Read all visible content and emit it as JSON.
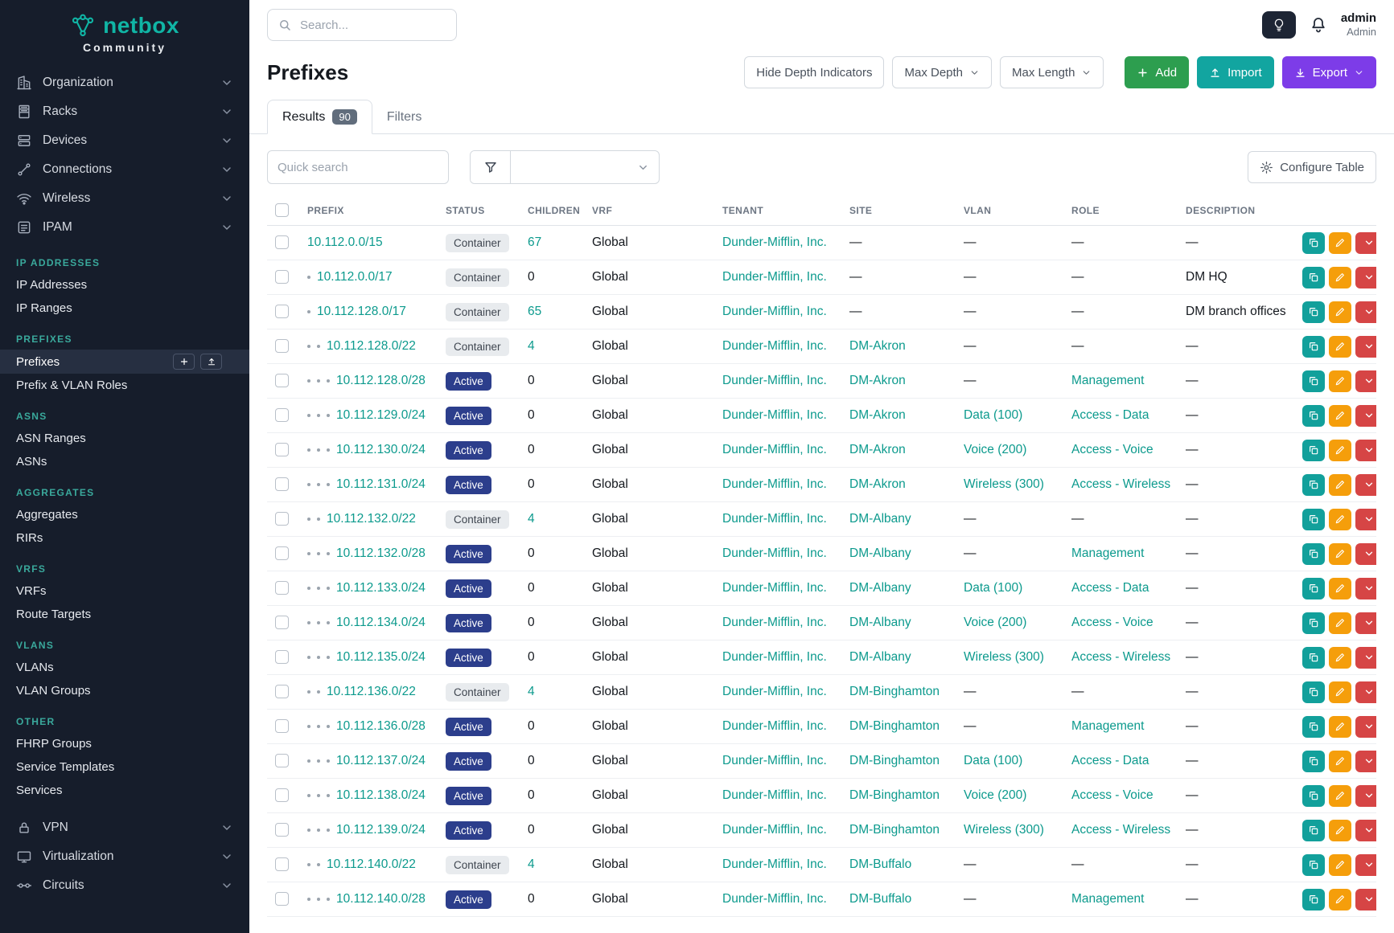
{
  "colors": {
    "accent_teal": "#10b5a5",
    "link_teal": "#0c9a8d",
    "sidebar_bg": "#161d2b",
    "status_active": "#2c3e8c",
    "status_container": "#e8ebee",
    "add_green": "#2d9e4f",
    "import_teal": "#12a5a0",
    "export_purple": "#7d3ce8",
    "edit_orange": "#f59e0b",
    "danger_red": "#d64545"
  },
  "sidebar": {
    "brand": "netbox",
    "brand_subtitle": "Community",
    "nav_top": [
      {
        "label": "Organization",
        "icon": "organization-icon"
      },
      {
        "label": "Racks",
        "icon": "racks-icon"
      },
      {
        "label": "Devices",
        "icon": "devices-icon"
      },
      {
        "label": "Connections",
        "icon": "connections-icon"
      },
      {
        "label": "Wireless",
        "icon": "wireless-icon"
      },
      {
        "label": "IPAM",
        "icon": "ipam-icon"
      }
    ],
    "sections": [
      {
        "title": "IP Addresses",
        "items": [
          {
            "label": "IP Addresses"
          },
          {
            "label": "IP Ranges"
          }
        ]
      },
      {
        "title": "Prefixes",
        "items": [
          {
            "label": "Prefixes",
            "active": true
          },
          {
            "label": "Prefix & VLAN Roles"
          }
        ]
      },
      {
        "title": "ASNs",
        "items": [
          {
            "label": "ASN Ranges"
          },
          {
            "label": "ASNs"
          }
        ]
      },
      {
        "title": "Aggregates",
        "items": [
          {
            "label": "Aggregates"
          },
          {
            "label": "RIRs"
          }
        ]
      },
      {
        "title": "VRFs",
        "items": [
          {
            "label": "VRFs"
          },
          {
            "label": "Route Targets"
          }
        ]
      },
      {
        "title": "VLANs",
        "items": [
          {
            "label": "VLANs"
          },
          {
            "label": "VLAN Groups"
          }
        ]
      },
      {
        "title": "Other",
        "items": [
          {
            "label": "FHRP Groups"
          },
          {
            "label": "Service Templates"
          },
          {
            "label": "Services"
          }
        ]
      }
    ],
    "nav_bottom": [
      {
        "label": "VPN",
        "icon": "vpn-icon"
      },
      {
        "label": "Virtualization",
        "icon": "virtualization-icon"
      },
      {
        "label": "Circuits",
        "icon": "circuits-icon"
      }
    ]
  },
  "topbar": {
    "search_placeholder": "Search...",
    "user": {
      "name": "admin",
      "role": "Admin"
    }
  },
  "page": {
    "title": "Prefixes",
    "controls": {
      "hide_depth": "Hide Depth Indicators",
      "max_depth": "Max Depth",
      "max_length": "Max Length",
      "add": "Add",
      "import": "Import",
      "export": "Export"
    },
    "tabs": [
      {
        "label": "Results",
        "badge": "90"
      },
      {
        "label": "Filters"
      }
    ],
    "quick_search_placeholder": "Quick search",
    "configure_table": "Configure Table"
  },
  "table": {
    "columns": [
      "Prefix",
      "Status",
      "Children",
      "VRF",
      "Tenant",
      "Site",
      "VLAN",
      "Role",
      "Description"
    ],
    "rows": [
      {
        "prefix": "10.112.0.0/15",
        "depth": 0,
        "status": "Container",
        "children": "67",
        "vrf": "Global",
        "tenant": "Dunder-Mifflin, Inc.",
        "site": "—",
        "vlan": "—",
        "role": "—",
        "description": "—"
      },
      {
        "prefix": "10.112.0.0/17",
        "depth": 1,
        "status": "Container",
        "children": "0",
        "vrf": "Global",
        "tenant": "Dunder-Mifflin, Inc.",
        "site": "—",
        "vlan": "—",
        "role": "—",
        "description": "DM HQ"
      },
      {
        "prefix": "10.112.128.0/17",
        "depth": 1,
        "status": "Container",
        "children": "65",
        "vrf": "Global",
        "tenant": "Dunder-Mifflin, Inc.",
        "site": "—",
        "vlan": "—",
        "role": "—",
        "description": "DM branch offices"
      },
      {
        "prefix": "10.112.128.0/22",
        "depth": 2,
        "status": "Container",
        "children": "4",
        "vrf": "Global",
        "tenant": "Dunder-Mifflin, Inc.",
        "site": "DM-Akron",
        "vlan": "—",
        "role": "—",
        "description": "—"
      },
      {
        "prefix": "10.112.128.0/28",
        "depth": 3,
        "status": "Active",
        "children": "0",
        "vrf": "Global",
        "tenant": "Dunder-Mifflin, Inc.",
        "site": "DM-Akron",
        "vlan": "—",
        "role": "Management",
        "description": "—"
      },
      {
        "prefix": "10.112.129.0/24",
        "depth": 3,
        "status": "Active",
        "children": "0",
        "vrf": "Global",
        "tenant": "Dunder-Mifflin, Inc.",
        "site": "DM-Akron",
        "vlan": "Data (100)",
        "role": "Access - Data",
        "description": "—"
      },
      {
        "prefix": "10.112.130.0/24",
        "depth": 3,
        "status": "Active",
        "children": "0",
        "vrf": "Global",
        "tenant": "Dunder-Mifflin, Inc.",
        "site": "DM-Akron",
        "vlan": "Voice (200)",
        "role": "Access - Voice",
        "description": "—"
      },
      {
        "prefix": "10.112.131.0/24",
        "depth": 3,
        "status": "Active",
        "children": "0",
        "vrf": "Global",
        "tenant": "Dunder-Mifflin, Inc.",
        "site": "DM-Akron",
        "vlan": "Wireless (300)",
        "role": "Access - Wireless",
        "description": "—"
      },
      {
        "prefix": "10.112.132.0/22",
        "depth": 2,
        "status": "Container",
        "children": "4",
        "vrf": "Global",
        "tenant": "Dunder-Mifflin, Inc.",
        "site": "DM-Albany",
        "vlan": "—",
        "role": "—",
        "description": "—"
      },
      {
        "prefix": "10.112.132.0/28",
        "depth": 3,
        "status": "Active",
        "children": "0",
        "vrf": "Global",
        "tenant": "Dunder-Mifflin, Inc.",
        "site": "DM-Albany",
        "vlan": "—",
        "role": "Management",
        "description": "—"
      },
      {
        "prefix": "10.112.133.0/24",
        "depth": 3,
        "status": "Active",
        "children": "0",
        "vrf": "Global",
        "tenant": "Dunder-Mifflin, Inc.",
        "site": "DM-Albany",
        "vlan": "Data (100)",
        "role": "Access - Data",
        "description": "—"
      },
      {
        "prefix": "10.112.134.0/24",
        "depth": 3,
        "status": "Active",
        "children": "0",
        "vrf": "Global",
        "tenant": "Dunder-Mifflin, Inc.",
        "site": "DM-Albany",
        "vlan": "Voice (200)",
        "role": "Access - Voice",
        "description": "—"
      },
      {
        "prefix": "10.112.135.0/24",
        "depth": 3,
        "status": "Active",
        "children": "0",
        "vrf": "Global",
        "tenant": "Dunder-Mifflin, Inc.",
        "site": "DM-Albany",
        "vlan": "Wireless (300)",
        "role": "Access - Wireless",
        "description": "—"
      },
      {
        "prefix": "10.112.136.0/22",
        "depth": 2,
        "status": "Container",
        "children": "4",
        "vrf": "Global",
        "tenant": "Dunder-Mifflin, Inc.",
        "site": "DM-Binghamton",
        "vlan": "—",
        "role": "—",
        "description": "—"
      },
      {
        "prefix": "10.112.136.0/28",
        "depth": 3,
        "status": "Active",
        "children": "0",
        "vrf": "Global",
        "tenant": "Dunder-Mifflin, Inc.",
        "site": "DM-Binghamton",
        "vlan": "—",
        "role": "Management",
        "description": "—"
      },
      {
        "prefix": "10.112.137.0/24",
        "depth": 3,
        "status": "Active",
        "children": "0",
        "vrf": "Global",
        "tenant": "Dunder-Mifflin, Inc.",
        "site": "DM-Binghamton",
        "vlan": "Data (100)",
        "role": "Access - Data",
        "description": "—"
      },
      {
        "prefix": "10.112.138.0/24",
        "depth": 3,
        "status": "Active",
        "children": "0",
        "vrf": "Global",
        "tenant": "Dunder-Mifflin, Inc.",
        "site": "DM-Binghamton",
        "vlan": "Voice (200)",
        "role": "Access - Voice",
        "description": "—"
      },
      {
        "prefix": "10.112.139.0/24",
        "depth": 3,
        "status": "Active",
        "children": "0",
        "vrf": "Global",
        "tenant": "Dunder-Mifflin, Inc.",
        "site": "DM-Binghamton",
        "vlan": "Wireless (300)",
        "role": "Access - Wireless",
        "description": "—"
      },
      {
        "prefix": "10.112.140.0/22",
        "depth": 2,
        "status": "Container",
        "children": "4",
        "vrf": "Global",
        "tenant": "Dunder-Mifflin, Inc.",
        "site": "DM-Buffalo",
        "vlan": "—",
        "role": "—",
        "description": "—"
      },
      {
        "prefix": "10.112.140.0/28",
        "depth": 3,
        "status": "Active",
        "children": "0",
        "vrf": "Global",
        "tenant": "Dunder-Mifflin, Inc.",
        "site": "DM-Buffalo",
        "vlan": "—",
        "role": "Management",
        "description": "—"
      }
    ]
  }
}
